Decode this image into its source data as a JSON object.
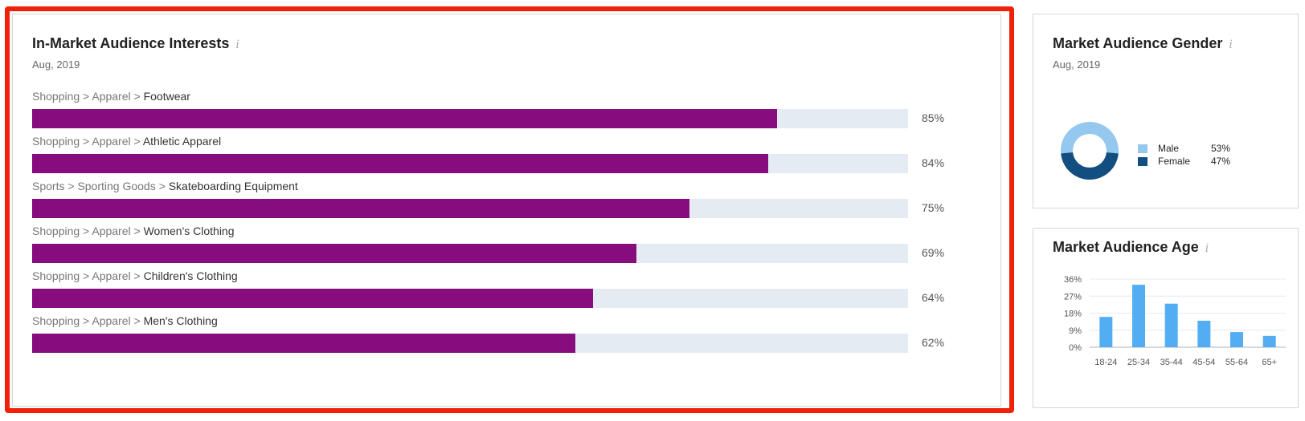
{
  "interests": {
    "title": "In-Market Audience Interests",
    "info_icon": "i",
    "date": "Aug, 2019",
    "rows": [
      {
        "crumbs": [
          "Shopping",
          "Apparel"
        ],
        "leaf": "Footwear",
        "value": 85,
        "pct": "85%"
      },
      {
        "crumbs": [
          "Shopping",
          "Apparel"
        ],
        "leaf": "Athletic Apparel",
        "value": 84,
        "pct": "84%"
      },
      {
        "crumbs": [
          "Sports",
          "Sporting Goods"
        ],
        "leaf": "Skateboarding Equipment",
        "value": 75,
        "pct": "75%"
      },
      {
        "crumbs": [
          "Shopping",
          "Apparel"
        ],
        "leaf": "Women's Clothing",
        "value": 69,
        "pct": "69%"
      },
      {
        "crumbs": [
          "Shopping",
          "Apparel"
        ],
        "leaf": "Children's Clothing",
        "value": 64,
        "pct": "64%"
      },
      {
        "crumbs": [
          "Shopping",
          "Apparel"
        ],
        "leaf": "Men's Clothing",
        "value": 62,
        "pct": "62%"
      }
    ],
    "separator": ">",
    "colors": {
      "fill": "#870c7e",
      "track": "#e4ebf2"
    }
  },
  "gender": {
    "title": "Market Audience Gender",
    "info_icon": "i",
    "date": "Aug, 2019",
    "legend": [
      {
        "name": "Male",
        "value": "53%",
        "color": "#94c8ef"
      },
      {
        "name": "Female",
        "value": "47%",
        "color": "#124f80"
      }
    ]
  },
  "age": {
    "title": "Market Audience Age",
    "info_icon": "i"
  },
  "chart_data": [
    {
      "type": "bar",
      "categories": [
        "Footwear",
        "Athletic Apparel",
        "Skateboarding Equipment",
        "Women's Clothing",
        "Children's Clothing",
        "Men's Clothing"
      ],
      "values": [
        85,
        84,
        75,
        69,
        64,
        62
      ],
      "ylim": [
        0,
        100
      ]
    },
    {
      "type": "pie",
      "categories": [
        "Male",
        "Female"
      ],
      "values": [
        53,
        47
      ]
    },
    {
      "type": "bar",
      "categories": [
        "18-24",
        "25-34",
        "35-44",
        "45-54",
        "55-64",
        "65+"
      ],
      "values": [
        16,
        33,
        23,
        14,
        8,
        6
      ],
      "yticks": [
        "0%",
        "9%",
        "18%",
        "27%",
        "36%"
      ],
      "ylim": [
        0,
        36
      ],
      "grid": true,
      "color": "#52adf2"
    }
  ]
}
